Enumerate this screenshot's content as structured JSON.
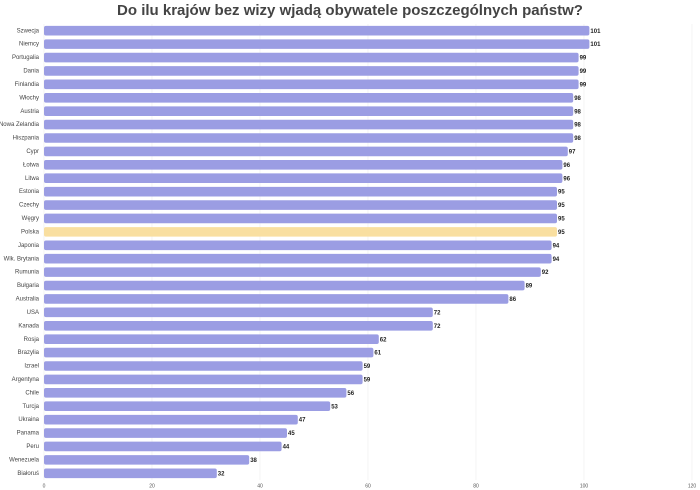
{
  "chart_data": {
    "type": "barh",
    "title": "Do ilu krajów bez wizy wjadą obywatele poszczególnych państw?",
    "categories": [
      "Szwecja",
      "Niemcy",
      "Portugalia",
      "Dania",
      "Finlandia",
      "Włochy",
      "Austria",
      "Nowa Zelandia",
      "Hiszpania",
      "Cypr",
      "Łotwa",
      "Litwa",
      "Estonia",
      "Czechy",
      "Węgry",
      "Polska",
      "Japonia",
      "Wlk. Brytania",
      "Rumunia",
      "Bułgaria",
      "Australia",
      "USA",
      "Kanada",
      "Rosja",
      "Brazylia",
      "Izrael",
      "Argentyna",
      "Chile",
      "Turcja",
      "Ukraina",
      "Panama",
      "Peru",
      "Wenezuela",
      "Białoruś"
    ],
    "values": [
      101,
      101,
      99,
      99,
      99,
      98,
      98,
      98,
      98,
      97,
      96,
      96,
      95,
      95,
      95,
      95,
      94,
      94,
      92,
      89,
      86,
      72,
      72,
      62,
      61,
      59,
      59,
      56,
      53,
      47,
      45,
      44,
      38,
      32
    ],
    "colors": [
      "#9b9de3",
      "#9b9de3",
      "#9b9de3",
      "#9b9de3",
      "#9b9de3",
      "#9b9de3",
      "#9b9de3",
      "#9b9de3",
      "#9b9de3",
      "#9b9de3",
      "#9b9de3",
      "#9b9de3",
      "#9b9de3",
      "#9b9de3",
      "#9b9de3",
      "#f9dfa0",
      "#9b9de3",
      "#9b9de3",
      "#9b9de3",
      "#9b9de3",
      "#9b9de3",
      "#9b9de3",
      "#9b9de3",
      "#9b9de3",
      "#9b9de3",
      "#9b9de3",
      "#9b9de3",
      "#9b9de3",
      "#9b9de3",
      "#9b9de3",
      "#9b9de3",
      "#9b9de3",
      "#9b9de3",
      "#9b9de3"
    ],
    "xlim": [
      0,
      120
    ],
    "xticks": [
      0,
      20,
      40,
      60,
      80,
      100,
      120
    ],
    "grid": true
  }
}
